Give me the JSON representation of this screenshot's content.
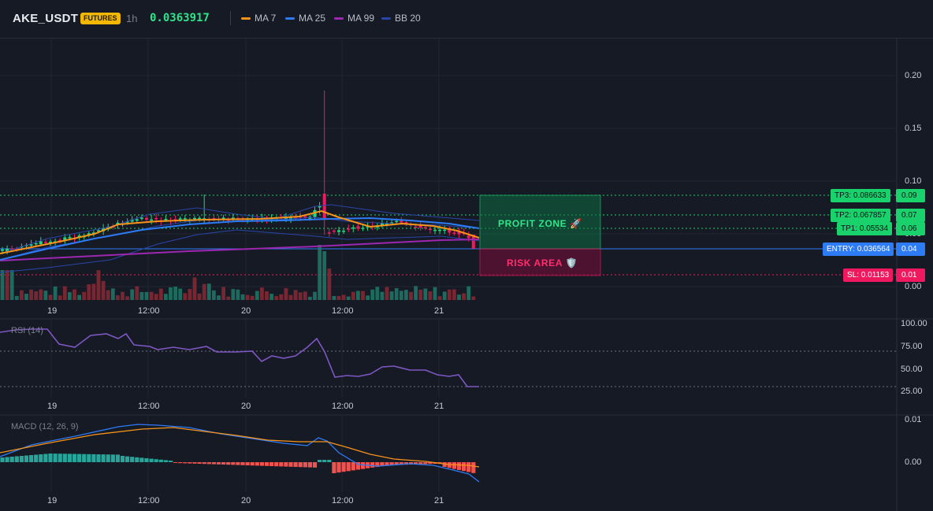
{
  "header": {
    "symbol": "AKE_USDT",
    "badge": "FUTURES",
    "timeframe": "1h",
    "price": "0.0363917",
    "legend": [
      {
        "label": "MA 7",
        "color": "#f7931a"
      },
      {
        "label": "MA 25",
        "color": "#2e7bf6"
      },
      {
        "label": "MA 99",
        "color": "#9c27b0"
      },
      {
        "label": "BB 20",
        "color": "#2846a8"
      }
    ]
  },
  "price_axis": [
    "0.20",
    "0.15",
    "0.10",
    "0.05",
    "0.00"
  ],
  "time_axis": [
    "19",
    "12:00",
    "20",
    "12:00",
    "21"
  ],
  "levels": {
    "tp3": {
      "label": "TP3: 0.086633",
      "axis": "0.09",
      "color": "#19d26b"
    },
    "tp2": {
      "label": "TP2: 0.067857",
      "axis": "0.07",
      "color": "#19d26b"
    },
    "tp1": {
      "label": "TP1: 0.05534",
      "axis": "0.06",
      "color": "#19d26b"
    },
    "entry": {
      "label": "ENTRY: 0.036564",
      "axis": "0.04",
      "color": "#2e7bf6"
    },
    "sl": {
      "label": "SL: 0.01153",
      "axis": "0.01",
      "color": "#f0195f"
    }
  },
  "zones": {
    "profit": "PROFIT ZONE 🚀",
    "risk": "RISK AREA 🛡️"
  },
  "rsi": {
    "title": "RSI (14)",
    "axis": [
      "100.00",
      "75.00",
      "50.00",
      "25.00"
    ],
    "color": "#7e57c2"
  },
  "macd": {
    "title": "MACD (12, 26, 9)",
    "axis": [
      "0.01",
      "0.00"
    ],
    "macd_color": "#2e7bf6",
    "signal_color": "#f7931a",
    "hist_pos_color": "#26a69a",
    "hist_neg_color": "#ef5350"
  },
  "colors": {
    "background": "#161a25",
    "bull": "#26d67c",
    "bear": "#f0195f"
  }
}
